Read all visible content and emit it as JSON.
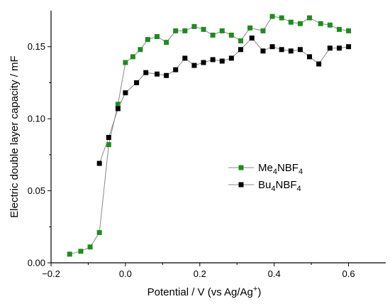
{
  "chart_data": {
    "type": "line",
    "title": "",
    "xlabel": "Potential / V (vs Ag/Ag",
    "xlabel_sup": "+",
    "xlabel_end": ")",
    "ylabel": "Electric double layer capacity / mF",
    "xlim": [
      -0.2,
      0.7
    ],
    "ylim": [
      0.0,
      0.175
    ],
    "x_ticks": [
      -0.2,
      0.0,
      0.2,
      0.4,
      0.6
    ],
    "x_tick_labels": [
      "−0.2",
      "0.0",
      "0.2",
      "0.4",
      "0.6"
    ],
    "y_ticks": [
      0.0,
      0.05,
      0.1,
      0.15
    ],
    "y_tick_labels": [
      "0.00",
      "0.05",
      "0.10",
      "0.15"
    ],
    "grid": false,
    "legend_position": "center-right",
    "series": [
      {
        "name_main": "Me",
        "name_sub1": "4",
        "name_mid": "NBF",
        "name_sub2": "4",
        "color": "#1e8c1e",
        "line_color": "#888888",
        "marker": "square",
        "x": [
          -0.15,
          -0.12,
          -0.095,
          -0.07,
          -0.045,
          -0.02,
          0.0,
          0.02,
          0.04,
          0.06,
          0.085,
          0.11,
          0.135,
          0.16,
          0.185,
          0.21,
          0.235,
          0.26,
          0.285,
          0.31,
          0.335,
          0.37,
          0.395,
          0.42,
          0.445,
          0.47,
          0.495,
          0.525,
          0.55,
          0.575,
          0.6
        ],
        "y": [
          0.006,
          0.008,
          0.011,
          0.021,
          0.082,
          0.11,
          0.139,
          0.143,
          0.148,
          0.155,
          0.157,
          0.153,
          0.161,
          0.161,
          0.164,
          0.162,
          0.158,
          0.161,
          0.158,
          0.154,
          0.163,
          0.161,
          0.171,
          0.17,
          0.167,
          0.166,
          0.17,
          0.166,
          0.165,
          0.162,
          0.161
        ]
      },
      {
        "name_main": "Bu",
        "name_sub1": "4",
        "name_mid": "NBF",
        "name_sub2": "4",
        "color": "#000000",
        "line_color": "#888888",
        "marker": "square",
        "x": [
          -0.07,
          -0.045,
          -0.02,
          0.0,
          0.03,
          0.055,
          0.085,
          0.11,
          0.135,
          0.16,
          0.185,
          0.21,
          0.235,
          0.26,
          0.285,
          0.31,
          0.34,
          0.37,
          0.395,
          0.42,
          0.445,
          0.47,
          0.495,
          0.52,
          0.55,
          0.575,
          0.6
        ],
        "y": [
          0.069,
          0.087,
          0.107,
          0.118,
          0.125,
          0.132,
          0.131,
          0.13,
          0.134,
          0.142,
          0.137,
          0.139,
          0.141,
          0.14,
          0.142,
          0.148,
          0.156,
          0.147,
          0.15,
          0.148,
          0.147,
          0.148,
          0.143,
          0.138,
          0.149,
          0.149,
          0.15
        ]
      }
    ]
  }
}
